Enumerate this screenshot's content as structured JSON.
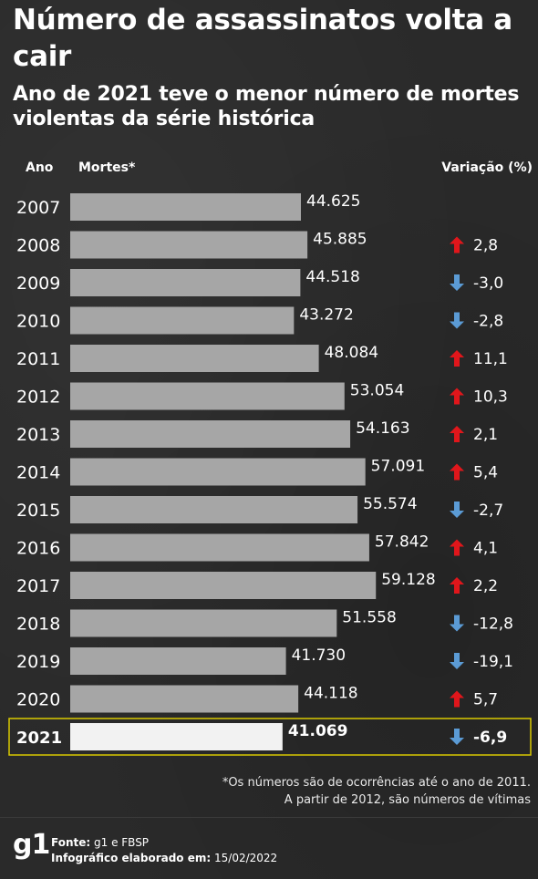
{
  "title": "Número de assassinatos volta a cair",
  "subtitle": "Ano de 2021 teve o menor número de mortes violentas da série histórica",
  "headers": {
    "year": "Ano",
    "deaths": "Mortes*",
    "variation": "Variação (%)"
  },
  "colors": {
    "bar": "#a6a6a6",
    "highlight_bar": "#f2f2f2",
    "highlight_border": "#d9c900",
    "up": "#e0161b",
    "down": "#5b9bd5"
  },
  "chart_data": {
    "type": "bar",
    "orientation": "horizontal",
    "categories": [
      "2007",
      "2008",
      "2009",
      "2010",
      "2011",
      "2012",
      "2013",
      "2014",
      "2015",
      "2016",
      "2017",
      "2018",
      "2019",
      "2020",
      "2021"
    ],
    "values": [
      44625,
      45885,
      44518,
      43272,
      48084,
      53054,
      54163,
      57091,
      55574,
      57842,
      59128,
      51558,
      41730,
      44118,
      41069
    ],
    "value_labels": [
      "44.625",
      "45.885",
      "44.518",
      "43.272",
      "48.084",
      "53.054",
      "54.163",
      "57.091",
      "55.574",
      "57.842",
      "59.128",
      "51.558",
      "41.730",
      "44.118",
      "41.069"
    ],
    "variation": [
      null,
      2.8,
      -3.0,
      -2.8,
      11.1,
      10.3,
      2.1,
      5.4,
      -2.7,
      4.1,
      2.2,
      -12.8,
      -19.1,
      5.7,
      -6.9
    ],
    "variation_labels": [
      "",
      "2,8",
      "-3,0",
      "-2,8",
      "11,1",
      "10,3",
      "2,1",
      "5,4",
      "-2,7",
      "4,1",
      "2,2",
      "-12,8",
      "-19,1",
      "5,7",
      "-6,9"
    ],
    "highlight": "2021",
    "xlabel": "",
    "ylabel": ""
  },
  "note": {
    "line1": "*Os números são de ocorrências até o ano de 2011.",
    "line2": "A partir de 2012, são números de vítimas"
  },
  "footer": {
    "logo": "g1",
    "source_label": "Fonte:",
    "source_value": "g1 e FBSP",
    "made_label": "Infográfico elaborado em:",
    "made_value": "15/02/2022"
  }
}
